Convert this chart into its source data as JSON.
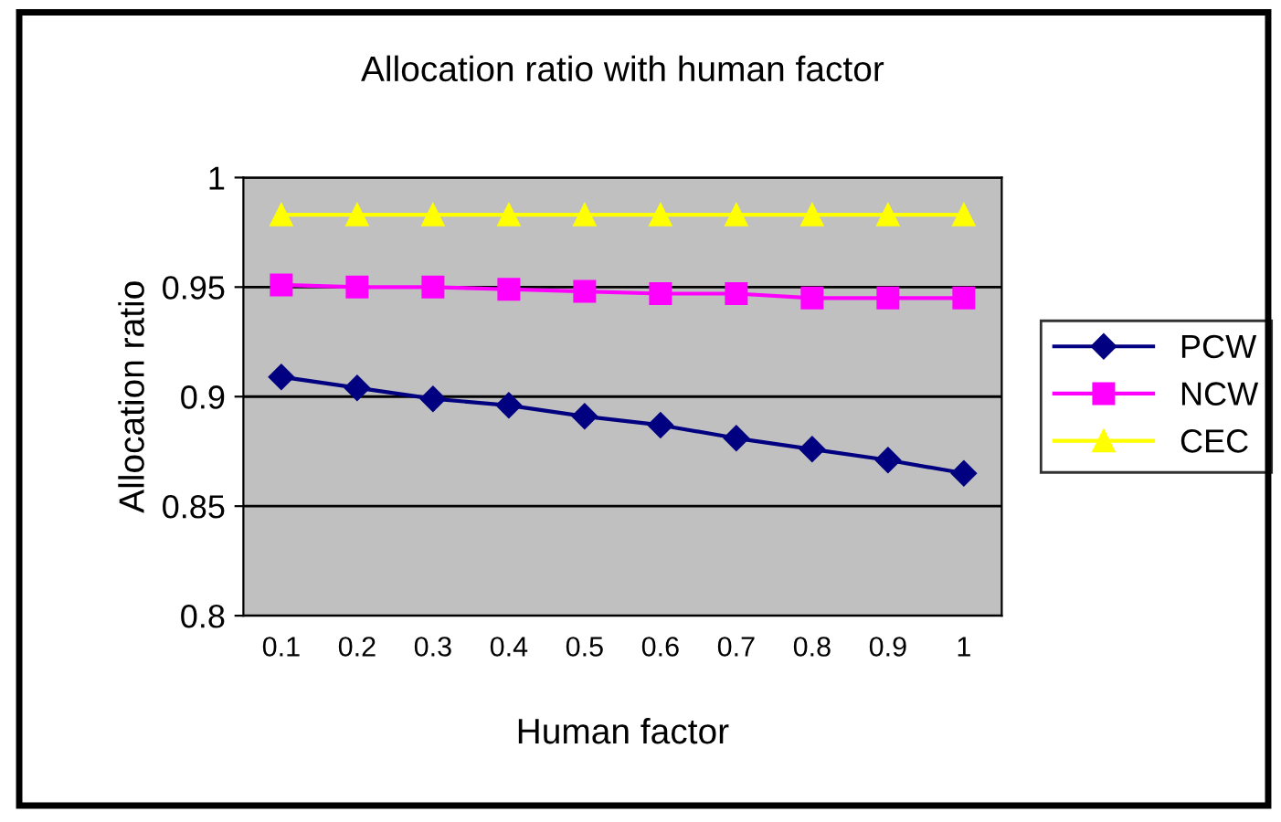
{
  "chart_data": {
    "type": "line",
    "title": "Allocation ratio with human factor",
    "xlabel": "Human factor",
    "ylabel": "Allocation ratio",
    "categories": [
      "0.1",
      "0.2",
      "0.3",
      "0.4",
      "0.5",
      "0.6",
      "0.7",
      "0.8",
      "0.9",
      "1"
    ],
    "series": [
      {
        "name": "PCW",
        "color": "#000080",
        "marker": "diamond",
        "values": [
          0.909,
          0.904,
          0.899,
          0.896,
          0.891,
          0.887,
          0.881,
          0.876,
          0.871,
          0.865
        ]
      },
      {
        "name": "NCW",
        "color": "#ff00ff",
        "marker": "square",
        "values": [
          0.951,
          0.95,
          0.95,
          0.949,
          0.948,
          0.947,
          0.947,
          0.945,
          0.945,
          0.945
        ]
      },
      {
        "name": "CEC",
        "color": "#ffff00",
        "marker": "triangle",
        "values": [
          0.983,
          0.983,
          0.983,
          0.983,
          0.983,
          0.983,
          0.983,
          0.983,
          0.983,
          0.983
        ]
      }
    ],
    "ylim": [
      0.8,
      1
    ],
    "yticks": [
      0.8,
      0.85,
      0.9,
      0.95,
      1
    ],
    "grid": "y",
    "legend": "right"
  }
}
